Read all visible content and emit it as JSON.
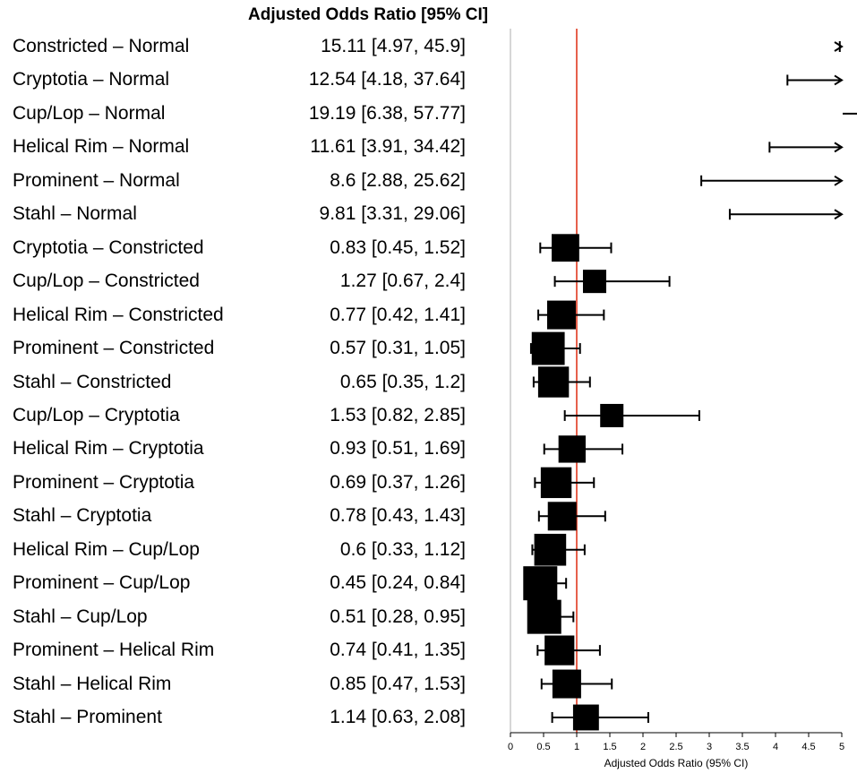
{
  "chart_data": {
    "type": "forest",
    "title": "Adjusted Odds Ratio [95% CI]",
    "xlabel": "Adjusted Odds Ratio (95% CI)",
    "xlim": [
      0,
      5
    ],
    "xticks": [
      "0",
      "0.5",
      "1",
      "1.5",
      "2",
      "2.5",
      "3",
      "3.5",
      "4",
      "4.5",
      "5"
    ],
    "reference_line": 1,
    "reference_color": "#e0391f",
    "rows": [
      {
        "label": "Constricted – Normal",
        "ci_text": "15.11 [4.97, 45.9]",
        "or": 15.11,
        "lo": 4.97,
        "hi": 45.9,
        "weight": 0.3
      },
      {
        "label": "Cryptotia – Normal",
        "ci_text": "12.54 [4.18, 37.64]",
        "or": 12.54,
        "lo": 4.18,
        "hi": 37.64,
        "weight": 0.3
      },
      {
        "label": "Cup/Lop – Normal",
        "ci_text": "19.19 [6.38, 57.77]",
        "or": 19.19,
        "lo": 6.38,
        "hi": 57.77,
        "weight": 0.3
      },
      {
        "label": "Helical Rim – Normal",
        "ci_text": "11.61 [3.91, 34.42]",
        "or": 11.61,
        "lo": 3.91,
        "hi": 34.42,
        "weight": 0.3
      },
      {
        "label": "Prominent – Normal",
        "ci_text": "8.6 [2.88, 25.62]",
        "or": 8.6,
        "lo": 2.88,
        "hi": 25.62,
        "weight": 0.3
      },
      {
        "label": "Stahl – Normal",
        "ci_text": "9.81 [3.31, 29.06]",
        "or": 9.81,
        "lo": 3.31,
        "hi": 29.06,
        "weight": 0.3
      },
      {
        "label": "Cryptotia – Constricted",
        "ci_text": "0.83 [0.45, 1.52]",
        "or": 0.83,
        "lo": 0.45,
        "hi": 1.52,
        "weight": 0.7
      },
      {
        "label": "Cup/Lop – Constricted",
        "ci_text": "1.27 [0.67, 2.4]",
        "or": 1.27,
        "lo": 0.67,
        "hi": 2.4,
        "weight": 0.5
      },
      {
        "label": "Helical Rim – Constricted",
        "ci_text": "0.77 [0.42, 1.41]",
        "or": 0.77,
        "lo": 0.42,
        "hi": 1.41,
        "weight": 0.75
      },
      {
        "label": "Prominent – Constricted",
        "ci_text": "0.57 [0.31, 1.05]",
        "or": 0.57,
        "lo": 0.31,
        "hi": 1.05,
        "weight": 0.95
      },
      {
        "label": "Stahl – Constricted",
        "ci_text": "0.65 [0.35, 1.2]",
        "or": 0.65,
        "lo": 0.35,
        "hi": 1.2,
        "weight": 0.85
      },
      {
        "label": "Cup/Lop – Cryptotia",
        "ci_text": "1.53 [0.82, 2.85]",
        "or": 1.53,
        "lo": 0.82,
        "hi": 2.85,
        "weight": 0.5
      },
      {
        "label": "Helical Rim – Cryptotia",
        "ci_text": "0.93 [0.51, 1.69]",
        "or": 0.93,
        "lo": 0.51,
        "hi": 1.69,
        "weight": 0.68
      },
      {
        "label": "Prominent – Cryptotia",
        "ci_text": "0.69 [0.37, 1.26]",
        "or": 0.69,
        "lo": 0.37,
        "hi": 1.26,
        "weight": 0.85
      },
      {
        "label": "Stahl – Cryptotia",
        "ci_text": "0.78 [0.43, 1.43]",
        "or": 0.78,
        "lo": 0.43,
        "hi": 1.43,
        "weight": 0.75
      },
      {
        "label": "Helical Rim – Cup/Lop",
        "ci_text": "0.6 [0.33, 1.12]",
        "or": 0.6,
        "lo": 0.33,
        "hi": 1.12,
        "weight": 0.9
      },
      {
        "label": "Prominent – Cup/Lop",
        "ci_text": "0.45 [0.24, 0.84]",
        "or": 0.45,
        "lo": 0.24,
        "hi": 0.84,
        "weight": 1.0
      },
      {
        "label": "Stahl – Cup/Lop",
        "ci_text": "0.51 [0.28, 0.95]",
        "or": 0.51,
        "lo": 0.28,
        "hi": 0.95,
        "weight": 1.0
      },
      {
        "label": "Prominent – Helical Rim",
        "ci_text": "0.74 [0.41, 1.35]",
        "or": 0.74,
        "lo": 0.41,
        "hi": 1.35,
        "weight": 0.8
      },
      {
        "label": "Stahl – Helical Rim",
        "ci_text": "0.85 [0.47, 1.53]",
        "or": 0.85,
        "lo": 0.47,
        "hi": 1.53,
        "weight": 0.75
      },
      {
        "label": "Stahl – Prominent",
        "ci_text": "1.14 [0.63, 2.08]",
        "or": 1.14,
        "lo": 0.63,
        "hi": 2.08,
        "weight": 0.62
      }
    ]
  }
}
